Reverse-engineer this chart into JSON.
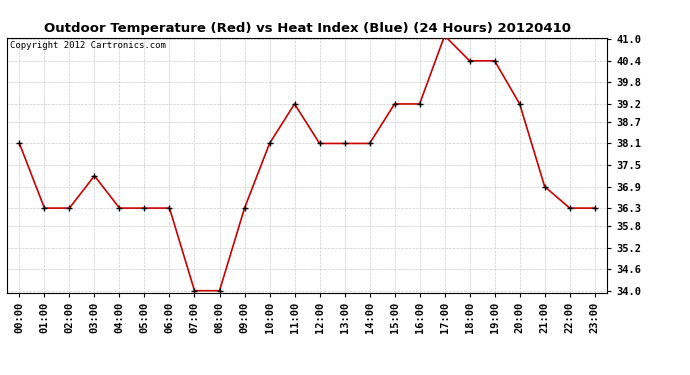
{
  "title": "Outdoor Temperature (Red) vs Heat Index (Blue) (24 Hours) 20120410",
  "copyright": "Copyright 2012 Cartronics.com",
  "hours": [
    "00:00",
    "01:00",
    "02:00",
    "03:00",
    "04:00",
    "05:00",
    "06:00",
    "07:00",
    "08:00",
    "09:00",
    "10:00",
    "11:00",
    "12:00",
    "13:00",
    "14:00",
    "15:00",
    "16:00",
    "17:00",
    "18:00",
    "19:00",
    "20:00",
    "21:00",
    "22:00",
    "23:00"
  ],
  "temp_red": [
    38.1,
    36.3,
    36.3,
    37.2,
    36.3,
    36.3,
    36.3,
    34.0,
    34.0,
    36.3,
    38.1,
    39.2,
    38.1,
    38.1,
    38.1,
    39.2,
    39.2,
    41.1,
    40.4,
    40.4,
    39.2,
    36.9,
    36.3,
    36.3
  ],
  "ylim_min": 33.95,
  "ylim_max": 41.05,
  "yticks": [
    34.0,
    34.6,
    35.2,
    35.8,
    36.3,
    36.9,
    37.5,
    38.1,
    38.7,
    39.2,
    39.8,
    40.4,
    41.0
  ],
  "ytick_labels": [
    "34.0",
    "34.6",
    "35.2",
    "35.8",
    "36.3",
    "36.9",
    "37.5",
    "38.1",
    "38.7",
    "39.2",
    "39.8",
    "40.4",
    "41.0"
  ],
  "line_color": "#cc0000",
  "background_color": "#ffffff",
  "grid_color": "#cccccc",
  "title_fontsize": 9.5,
  "tick_fontsize": 7.5,
  "copyright_fontsize": 6.5
}
